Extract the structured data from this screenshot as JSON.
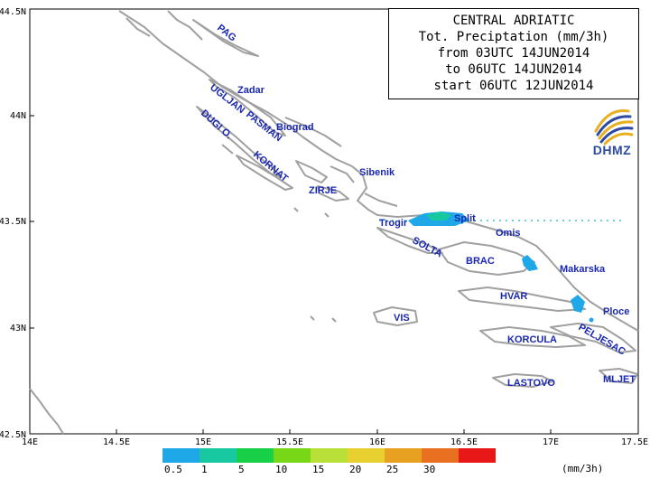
{
  "title": {
    "line1": "CENTRAL ADRIATIC",
    "line2": "Tot. Preciptation (mm/3h)",
    "line3": "from 03UTC 14JUN2014",
    "line4": "to 06UTC 14JUN2014",
    "line5": "start 06UTC 12JUN2014"
  },
  "logo": {
    "text": "DHMZ",
    "color": "#2b4aa0"
  },
  "axes": {
    "x_ticks": [
      "14E",
      "14.5E",
      "15E",
      "15.5E",
      "16E",
      "16.5E",
      "17E",
      "17.5E"
    ],
    "y_ticks": [
      "44.5N",
      "44N",
      "43.5N",
      "43N",
      "42.5N"
    ]
  },
  "places": [
    {
      "id": "pag",
      "label": "PAG"
    },
    {
      "id": "zadar",
      "label": "Zadar"
    },
    {
      "id": "ugljan",
      "label": "UGLJAN"
    },
    {
      "id": "pasman",
      "label": "PASMAN"
    },
    {
      "id": "biograd",
      "label": "Biograd"
    },
    {
      "id": "dugi",
      "label": "DUGI O."
    },
    {
      "id": "kornat",
      "label": "KORNAT"
    },
    {
      "id": "sibenik",
      "label": "Sibenik"
    },
    {
      "id": "zirje",
      "label": "ZIRJE"
    },
    {
      "id": "trogir",
      "label": "Trogir"
    },
    {
      "id": "split",
      "label": "Split"
    },
    {
      "id": "omis",
      "label": "Omis"
    },
    {
      "id": "solta",
      "label": "SOLTA"
    },
    {
      "id": "brac",
      "label": "BRAC"
    },
    {
      "id": "makarska",
      "label": "Makarska"
    },
    {
      "id": "hvar",
      "label": "HVAR"
    },
    {
      "id": "ploce",
      "label": "Ploce"
    },
    {
      "id": "vis",
      "label": "VIS"
    },
    {
      "id": "korcula",
      "label": "KORCULA"
    },
    {
      "id": "peljesac",
      "label": "PELJESAC"
    },
    {
      "id": "lastovo",
      "label": "LASTOVO"
    },
    {
      "id": "mljet",
      "label": "MLJET"
    }
  ],
  "legend": {
    "unit": "(mm/3h)",
    "thresholds": [
      "0.5",
      "1",
      "5",
      "10",
      "15",
      "20",
      "25",
      "30"
    ],
    "colors": [
      "#1ea8e8",
      "#18c8a0",
      "#18d048",
      "#78d818",
      "#b8e038",
      "#e8d030",
      "#e8a020",
      "#e87020",
      "#e81818"
    ]
  },
  "colors": {
    "coast": "#a0a0a0",
    "label": "#1a28b0",
    "grid": "#40c0c0"
  }
}
